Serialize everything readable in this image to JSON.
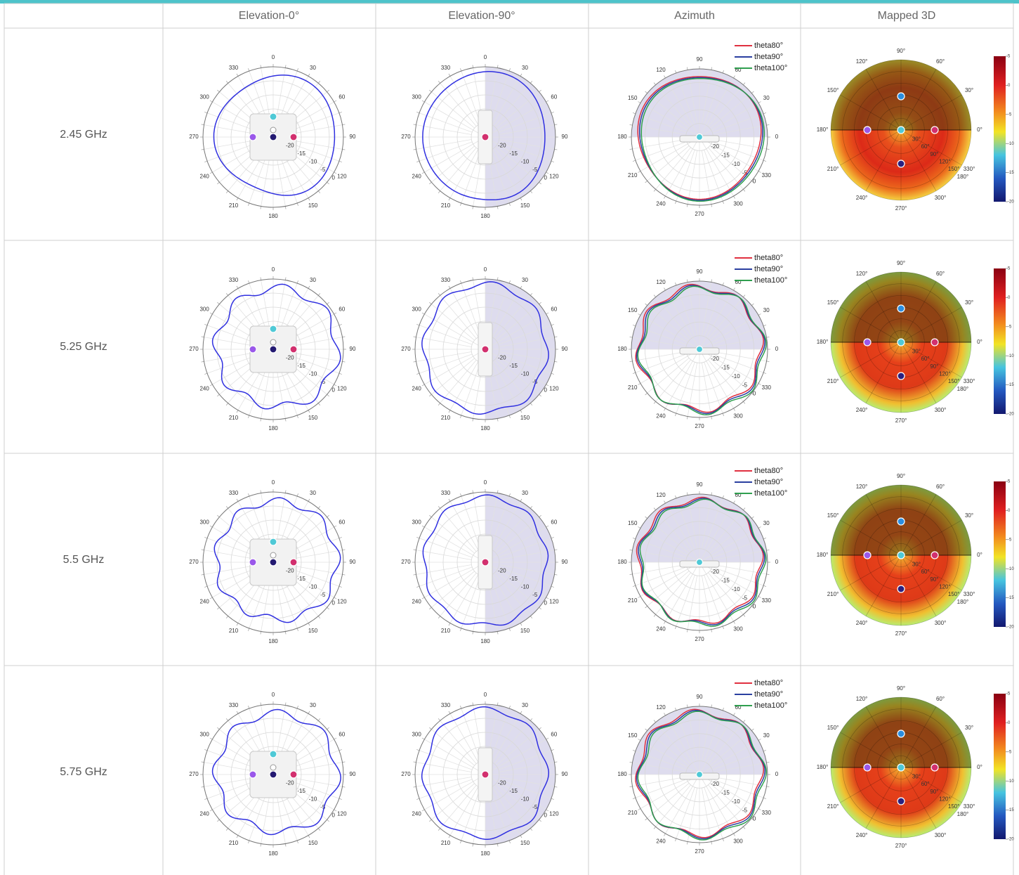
{
  "table": {
    "columns": [
      "Elevation-0°",
      "Elevation-90°",
      "Azimuth",
      "Mapped 3D"
    ],
    "rows": [
      "2.45 GHz",
      "5.25 GHz",
      "5.5 GHz",
      "5.75 GHz"
    ]
  },
  "polar": {
    "angle_labels": [
      0,
      30,
      60,
      90,
      120,
      150,
      180,
      210,
      240,
      270,
      300,
      330
    ],
    "rlim": [
      -25,
      0
    ],
    "rticks": [
      -20,
      -15,
      -10,
      -5,
      0
    ]
  },
  "azimuth": {
    "legend": [
      {
        "name": "theta80°",
        "color": "#e03040"
      },
      {
        "name": "theta90°",
        "color": "#2a3fa0"
      },
      {
        "name": "theta100°",
        "color": "#2f9f4f"
      }
    ]
  },
  "mapped_3d": {
    "angle_labels": [
      "0°",
      "30°",
      "60°",
      "90°",
      "120°",
      "150°",
      "180°",
      "210°",
      "240°",
      "270°",
      "300°",
      "330°"
    ],
    "theta_labels": [
      "30°",
      "60°",
      "90°",
      "120°",
      "150°",
      "180°"
    ],
    "clim": [
      -20,
      5
    ],
    "cticks": [
      5,
      0,
      -5,
      -10,
      -15,
      -20
    ]
  }
}
